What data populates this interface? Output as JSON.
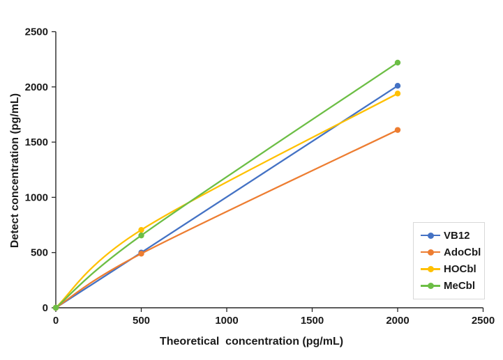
{
  "chart_data": {
    "type": "line",
    "line_style": "smooth",
    "x": [
      0,
      500,
      2000
    ],
    "series": [
      {
        "name": "VB12",
        "color": "#4472C4",
        "values": [
          0,
          500,
          2010
        ]
      },
      {
        "name": "AdoCbl",
        "color": "#ED7D31",
        "values": [
          0,
          490,
          1610
        ]
      },
      {
        "name": "HOCbl",
        "color": "#FFC000",
        "values": [
          0,
          705,
          1940
        ]
      },
      {
        "name": "MeCbl",
        "color": "#6CBE45",
        "values": [
          0,
          655,
          2220
        ]
      }
    ],
    "xlabel": "Theoretical  concentration (pg/mL)",
    "ylabel": "Detect concentration (pg/mL)",
    "xlim": [
      0,
      2500
    ],
    "ylim": [
      0,
      2500
    ],
    "x_ticks": [
      0,
      500,
      1000,
      1500,
      2000,
      2500
    ],
    "y_ticks": [
      0,
      500,
      1000,
      1500,
      2000,
      2500
    ],
    "grid": false,
    "legend_position": "inside-right-bottom",
    "axis_color": "#262626",
    "text_color": "#1a1a1a",
    "legend_border_color": "#d8d8d8",
    "background_color": "#ffffff"
  }
}
